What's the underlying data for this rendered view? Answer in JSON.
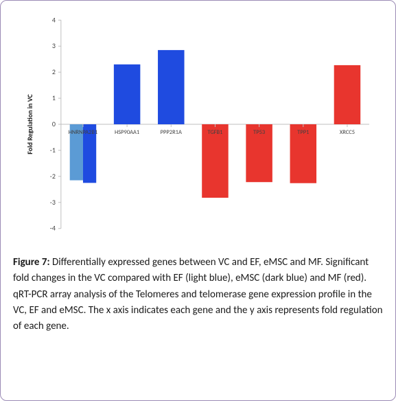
{
  "chart": {
    "type": "bar",
    "categories": [
      "HNRNPA2B1",
      "HSP90AA1",
      "PPP2R1A",
      "TGFB1",
      "TP53",
      "TPP1",
      "XRCC5"
    ],
    "groups": [
      {
        "name": "EF",
        "color": "#5b9bd5"
      },
      {
        "name": "eMSC",
        "color": "#1f4be0"
      },
      {
        "name": "MF",
        "color": "#e8352e"
      }
    ],
    "bars": [
      {
        "category": "HNRNPA2B1",
        "group": "EF",
        "value": -2.15
      },
      {
        "category": "HNRNPA2B1",
        "group": "eMSC",
        "value": -2.25
      },
      {
        "category": "HSP90AA1",
        "group": "eMSC",
        "value": 2.3
      },
      {
        "category": "PPP2R1A",
        "group": "eMSC",
        "value": 2.85
      },
      {
        "category": "TGFB1",
        "group": "MF",
        "value": -2.82
      },
      {
        "category": "TP53",
        "group": "MF",
        "value": -2.22
      },
      {
        "category": "TPP1",
        "group": "MF",
        "value": -2.26
      },
      {
        "category": "XRCC5",
        "group": "MF",
        "value": 2.27
      }
    ],
    "ylabel": "Fold Regulation in VC",
    "ylim": [
      -4,
      4
    ],
    "ytick_step": 1,
    "yticks": [
      -4,
      -3,
      -2,
      -1,
      0,
      1,
      2,
      3,
      4
    ],
    "axis_color": "#bfbfbf",
    "tick_color": "#404040",
    "background_color": "#ffffff",
    "bar_slot_width": 0.6,
    "label_fontsize": 10,
    "tick_fontsize": 10,
    "xtick_fontsize": 8.5,
    "grid": false
  },
  "caption": {
    "label": "Figure 7:",
    "text": "Differentially expressed genes between VC and EF, eMSC and MF. Significant fold changes in the VC compared with EF (light blue), eMSC (dark blue) and MF (red). qRT-PCR array analysis of the Telomeres and telomerase gene expression profile in the VC, EF and eMSC. The x axis indicates each gene and the y axis represents fold regulation of each gene."
  }
}
